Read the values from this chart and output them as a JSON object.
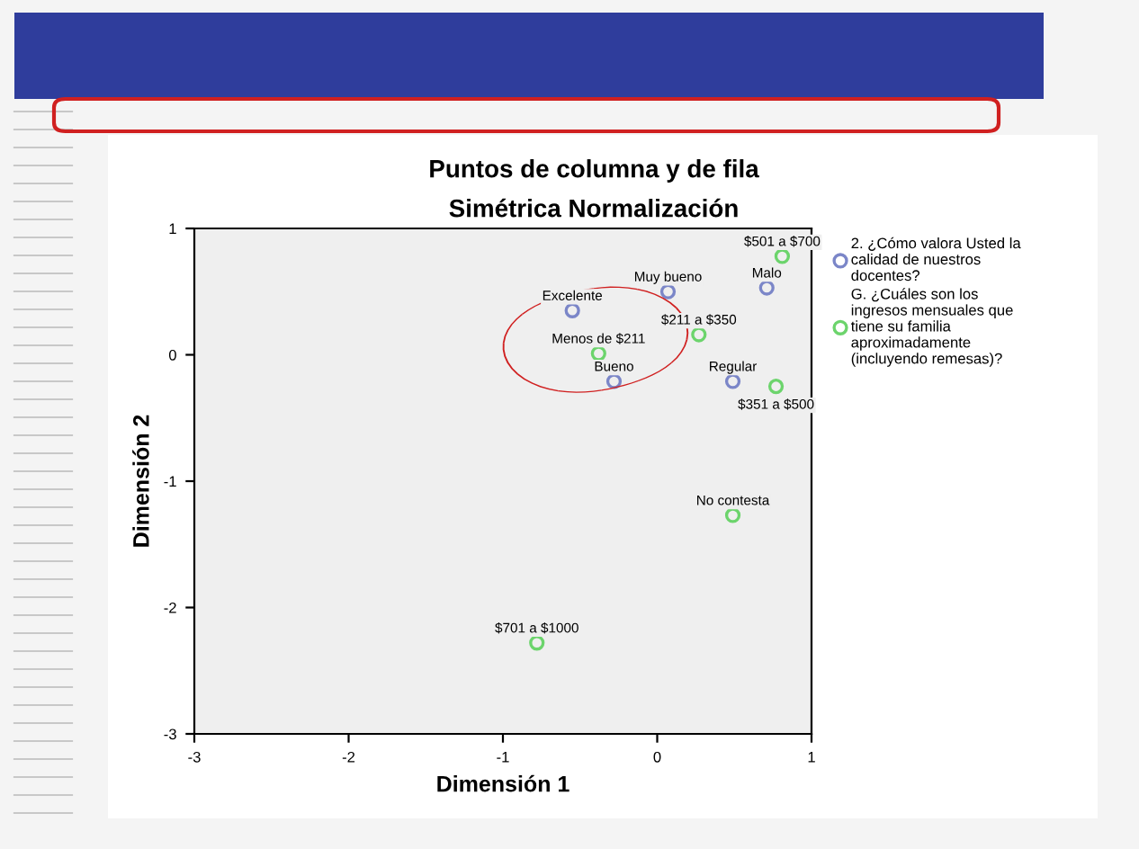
{
  "chart_data": {
    "type": "scatter",
    "title": "Puntos de columna y de fila",
    "subtitle": "Simétrica Normalización",
    "xlabel": "Dimensión 1",
    "ylabel": "Dimensión 2",
    "series": [
      {
        "name": "2. ¿Cómo valora Usted la calidad de nuestros docentes?",
        "color": "#7b86c8",
        "x": [
          -0.55,
          0.07,
          0.71,
          -0.28,
          0.49
        ],
        "values": [
          0.35,
          0.5,
          0.53,
          -0.21,
          -0.21
        ]
      },
      {
        "name": "G. ¿Cuáles son los ingresos mensuales que tiene su familia aproximadamente (incluyendo remesas)?",
        "color": "#6cd46c",
        "x": [
          0.81,
          0.27,
          -0.38,
          0.77,
          0.49,
          -0.78
        ],
        "values": [
          0.78,
          0.16,
          0.01,
          -0.25,
          -1.27,
          -2.28
        ]
      }
    ],
    "annotations": [
      {
        "text": "Excelente",
        "x": -0.55,
        "y": 0.35
      },
      {
        "text": "Muy bueno",
        "x": 0.07,
        "y": 0.5
      },
      {
        "text": "Malo",
        "x": 0.71,
        "y": 0.53
      },
      {
        "text": "Bueno",
        "x": -0.28,
        "y": -0.21
      },
      {
        "text": "Regular",
        "x": 0.49,
        "y": -0.21
      },
      {
        "text": "$501 a $700",
        "x": 0.81,
        "y": 0.78
      },
      {
        "text": "$211 a $350",
        "x": 0.27,
        "y": 0.16
      },
      {
        "text": "Menos de $211",
        "x": -0.38,
        "y": 0.01
      },
      {
        "text": "$351 a $500",
        "x": 0.77,
        "y": -0.25
      },
      {
        "text": "No contesta",
        "x": 0.49,
        "y": -1.27
      },
      {
        "text": "$701 a $1000",
        "x": -0.78,
        "y": -2.28
      }
    ],
    "xlim": [
      -3,
      1
    ],
    "ylim": [
      -3,
      1
    ],
    "xticks": [
      -3,
      -2,
      -1,
      0,
      1
    ],
    "yticks": [
      -3,
      -2,
      -1,
      0,
      1
    ],
    "marker": "circle",
    "grid": false,
    "legend": "right"
  }
}
